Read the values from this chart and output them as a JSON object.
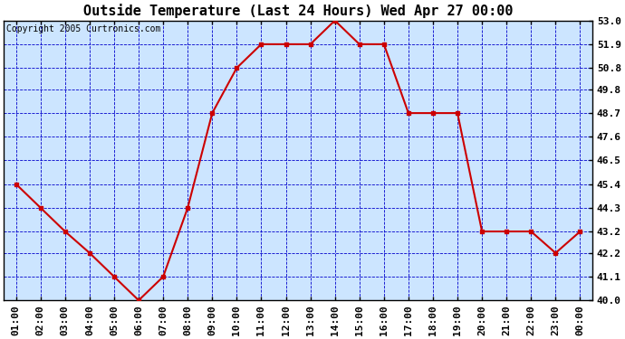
{
  "title": "Outside Temperature (Last 24 Hours) Wed Apr 27 00:00",
  "copyright": "Copyright 2005 Curtronics.com",
  "x_labels": [
    "01:00",
    "02:00",
    "03:00",
    "04:00",
    "05:00",
    "06:00",
    "07:00",
    "08:00",
    "09:00",
    "10:00",
    "11:00",
    "12:00",
    "13:00",
    "14:00",
    "15:00",
    "16:00",
    "17:00",
    "18:00",
    "19:00",
    "20:00",
    "21:00",
    "22:00",
    "23:00",
    "00:00"
  ],
  "y_values": [
    45.4,
    44.3,
    43.2,
    42.2,
    41.1,
    40.0,
    41.1,
    44.3,
    48.7,
    50.8,
    51.9,
    51.9,
    51.9,
    53.0,
    51.9,
    51.9,
    48.7,
    48.7,
    48.7,
    43.2,
    43.2,
    43.2,
    42.2,
    43.2
  ],
  "ylim_min": 40.0,
  "ylim_max": 53.0,
  "yticks": [
    40.0,
    41.1,
    42.2,
    43.2,
    44.3,
    45.4,
    46.5,
    47.6,
    48.7,
    49.8,
    50.8,
    51.9,
    53.0
  ],
  "line_color": "#cc0000",
  "marker_color": "#cc0000",
  "bg_color": "#cce5ff",
  "grid_color": "#0000cc",
  "title_color": "#000000",
  "title_fontsize": 11,
  "copyright_fontsize": 7,
  "tick_fontsize": 8,
  "fig_bg_color": "#ffffff",
  "fig_width": 6.9,
  "fig_height": 3.75,
  "dpi": 100
}
